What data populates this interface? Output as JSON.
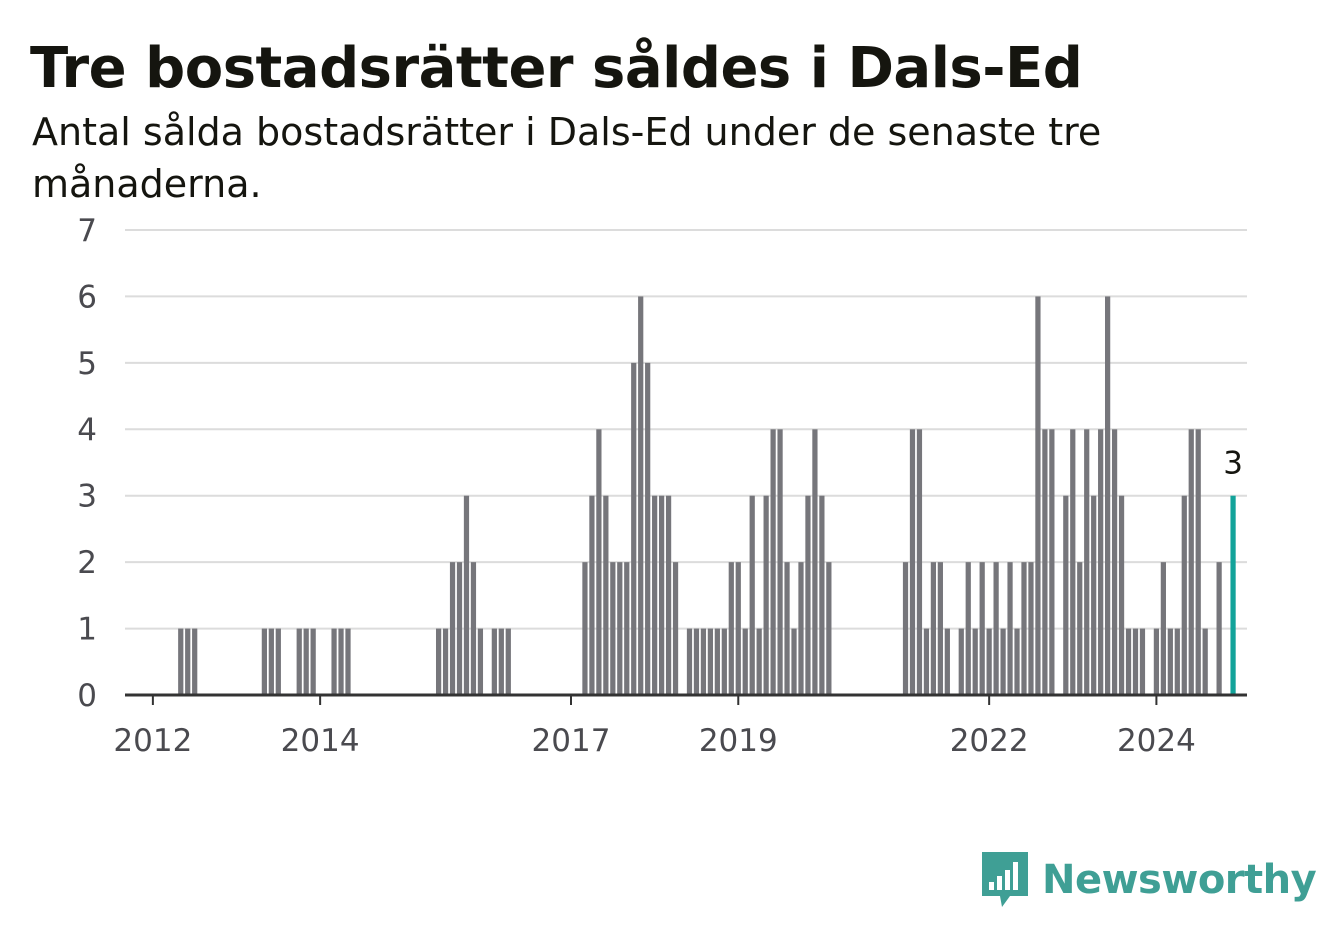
{
  "header": {
    "title": "Tre bostadsrätter såldes i Dals-Ed",
    "subtitle": "Antal sålda bostadsrätter i Dals-Ed under de senaste tre månaderna."
  },
  "brand": {
    "name": "Newsworthy",
    "color": "#3f9f95"
  },
  "colors": {
    "bar": "#76767b",
    "highlight": "#12a39a",
    "grid": "#dcdcdc",
    "axis": "#333333"
  },
  "chart_data": {
    "type": "bar",
    "title": "Tre bostadsrätter såldes i Dals-Ed",
    "subtitle": "Antal sålda bostadsrätter i Dals-Ed under de senaste tre månaderna.",
    "xlabel": "",
    "ylabel": "",
    "ylim": [
      0,
      7
    ],
    "yticks": [
      "0",
      "1",
      "2",
      "3",
      "4",
      "5",
      "6",
      "7"
    ],
    "xlim": [
      "2011-09",
      "2025-02"
    ],
    "xticks": [
      {
        "label": "2012",
        "date": "2012-01"
      },
      {
        "label": "2014",
        "date": "2014-01"
      },
      {
        "label": "2017",
        "date": "2017-01"
      },
      {
        "label": "2019",
        "date": "2019-01"
      },
      {
        "label": "2022",
        "date": "2022-01"
      },
      {
        "label": "2024",
        "date": "2024-01"
      }
    ],
    "grid": true,
    "legend": "none",
    "x": [
      "2012-05",
      "2012-06",
      "2012-07",
      "2013-05",
      "2013-06",
      "2013-07",
      "2013-10",
      "2013-11",
      "2013-12",
      "2014-03",
      "2014-04",
      "2014-05",
      "2015-06",
      "2015-07",
      "2015-08",
      "2015-09",
      "2015-10",
      "2015-11",
      "2015-12",
      "2016-01",
      "2016-02",
      "2016-03",
      "2016-04",
      "2016-05",
      "2017-03",
      "2017-04",
      "2017-05",
      "2017-06",
      "2017-07",
      "2017-08",
      "2017-09",
      "2017-10",
      "2017-11",
      "2017-12",
      "2018-01",
      "2018-02",
      "2018-03",
      "2018-04",
      "2018-05",
      "2018-06",
      "2018-07",
      "2018-08",
      "2018-09",
      "2018-10",
      "2018-11",
      "2018-12",
      "2019-01",
      "2019-02",
      "2019-03",
      "2019-04",
      "2019-05",
      "2019-06",
      "2019-07",
      "2019-08",
      "2019-09",
      "2019-10",
      "2019-11",
      "2019-12",
      "2020-01",
      "2020-02",
      "2020-03",
      "2020-04",
      "2021-01",
      "2021-02",
      "2021-03",
      "2021-04",
      "2021-05",
      "2021-06",
      "2021-07",
      "2021-08",
      "2021-09",
      "2021-10",
      "2021-11",
      "2021-12",
      "2022-01",
      "2022-02",
      "2022-03",
      "2022-04",
      "2022-05",
      "2022-06",
      "2022-07",
      "2022-08",
      "2022-09",
      "2022-10",
      "2022-11",
      "2022-12",
      "2023-01",
      "2023-02",
      "2023-03",
      "2023-04",
      "2023-05",
      "2023-06",
      "2023-07",
      "2023-08",
      "2023-09",
      "2023-10",
      "2023-11",
      "2023-12",
      "2024-01",
      "2024-02",
      "2024-03",
      "2024-04",
      "2024-05",
      "2024-06",
      "2024-07",
      "2024-08",
      "2024-09",
      "2024-10",
      "2024-11",
      "2024-12"
    ],
    "values": [
      1,
      1,
      1,
      1,
      1,
      1,
      1,
      1,
      1,
      1,
      1,
      1,
      1,
      1,
      2,
      2,
      3,
      2,
      1,
      0,
      1,
      1,
      1,
      0,
      2,
      3,
      4,
      3,
      2,
      2,
      2,
      5,
      6,
      5,
      3,
      3,
      3,
      2,
      0,
      1,
      1,
      1,
      1,
      1,
      1,
      2,
      2,
      1,
      3,
      1,
      3,
      4,
      4,
      2,
      1,
      2,
      3,
      4,
      3,
      2,
      0,
      0,
      2,
      4,
      4,
      1,
      2,
      2,
      1,
      0,
      1,
      2,
      1,
      2,
      1,
      2,
      1,
      2,
      1,
      2,
      2,
      6,
      4,
      4,
      0,
      3,
      4,
      2,
      4,
      3,
      4,
      6,
      4,
      3,
      1,
      1,
      1,
      0,
      1,
      2,
      1,
      1,
      3,
      4,
      4,
      1,
      0,
      2,
      0,
      3
    ],
    "highlight": {
      "x": "2024-12",
      "value": 3,
      "label": "3"
    }
  }
}
